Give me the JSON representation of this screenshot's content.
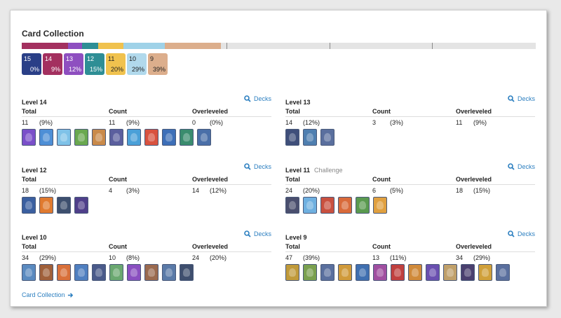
{
  "title": "Card Collection",
  "colors": {
    "link": "#2c7fc0",
    "segments": [
      "#a3305f",
      "#8e4fc0",
      "#2e8e95",
      "#f0c24e",
      "#9fd2e8",
      "#dcae8c",
      "#e4e4e4"
    ]
  },
  "badges": [
    {
      "level": "15",
      "pct": "0%",
      "color": "#2a3f87",
      "light": false
    },
    {
      "level": "14",
      "pct": "9%",
      "color": "#a3305f",
      "light": false
    },
    {
      "level": "13",
      "pct": "12%",
      "color": "#8e4fc0",
      "light": false
    },
    {
      "level": "12",
      "pct": "15%",
      "color": "#2e8e95",
      "light": false
    },
    {
      "level": "11",
      "pct": "20%",
      "color": "#f0c24e",
      "light": true
    },
    {
      "level": "10",
      "pct": "29%",
      "color": "#b1d9ec",
      "light": true
    },
    {
      "level": "9",
      "pct": "39%",
      "color": "#dcae8c",
      "light": true
    }
  ],
  "columns": {
    "total": "Total",
    "count": "Count",
    "overleveled": "Overleveled"
  },
  "decks_label": "Decks",
  "sections": [
    {
      "title": "Level 14",
      "subtitle": "",
      "total": "11",
      "total_pct": "(9%)",
      "count": "11",
      "count_pct": "(9%)",
      "over": "0",
      "over_pct": "(0%)",
      "cards": [
        "#7a4fc9",
        "#4e8fd6",
        "#7fc2e8",
        "#6aa84f",
        "#c98a4a",
        "#5b5f9e",
        "#4aa0d8",
        "#d9523f",
        "#3d6fb8",
        "#3a8c6e",
        "#4a6fa8"
      ]
    },
    {
      "title": "Level 13",
      "subtitle": "",
      "total": "14",
      "total_pct": "(12%)",
      "count": "3",
      "count_pct": "(3%)",
      "over": "11",
      "over_pct": "(9%)",
      "cards": [
        "#3f4f7a",
        "#4f7fb0",
        "#5a6f9e"
      ]
    },
    {
      "title": "Level 12",
      "subtitle": "",
      "total": "18",
      "total_pct": "(15%)",
      "count": "4",
      "count_pct": "(3%)",
      "over": "14",
      "over_pct": "(12%)",
      "cards": [
        "#3a5fa0",
        "#e07a2f",
        "#3d4f6e",
        "#4f3f8a"
      ]
    },
    {
      "title": "Level 11",
      "subtitle": "Challenge",
      "total": "24",
      "total_pct": "(20%)",
      "count": "6",
      "count_pct": "(5%)",
      "over": "18",
      "over_pct": "(15%)",
      "cards": [
        "#4a4f6e",
        "#6fb0e0",
        "#c9503f",
        "#d96a3a",
        "#5a9a4f",
        "#e0a040"
      ]
    },
    {
      "title": "Level 10",
      "subtitle": "",
      "total": "34",
      "total_pct": "(29%)",
      "count": "10",
      "count_pct": "(8%)",
      "over": "24",
      "over_pct": "(20%)",
      "cards": [
        "#5a8ac0",
        "#a0603a",
        "#d9703a",
        "#4f7fc0",
        "#4a5a8a",
        "#6aa870",
        "#8a4fc0",
        "#9a6a4f",
        "#5a7aa8",
        "#3f4f6e"
      ]
    },
    {
      "title": "Level 9",
      "subtitle": "",
      "total": "47",
      "total_pct": "(39%)",
      "count": "13",
      "count_pct": "(11%)",
      "over": "34",
      "over_pct": "(29%)",
      "cards": [
        "#c09a3a",
        "#7aa04f",
        "#5a6f9e",
        "#d09a3a",
        "#3f6fb0",
        "#a04fa0",
        "#c0403f",
        "#d08a3a",
        "#6a4fb0",
        "#c0a06a",
        "#4a3f6e",
        "#d0a03a",
        "#5a6f9e"
      ]
    }
  ],
  "footer_link": "Card Collection"
}
